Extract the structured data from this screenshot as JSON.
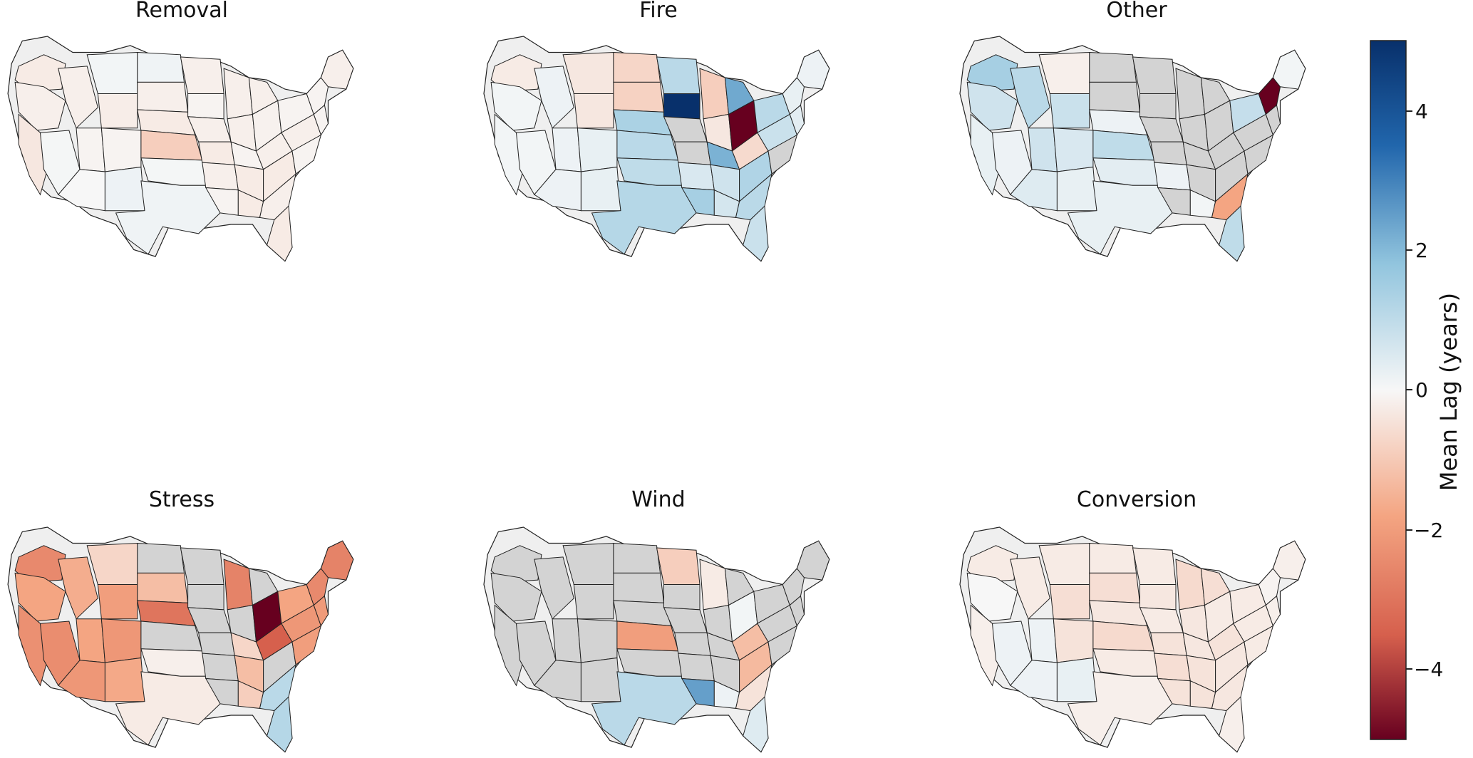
{
  "figure": {
    "panels": [
      {
        "title": "Removal",
        "key": "removal",
        "fill_mode": "diverging_light"
      },
      {
        "title": "Fire",
        "key": "fire",
        "fill_mode": "fire_mixed"
      },
      {
        "title": "Other",
        "key": "other",
        "fill_mode": "other_sparse"
      },
      {
        "title": "Stress",
        "key": "stress",
        "fill_mode": "stress_strong"
      },
      {
        "title": "Wind",
        "key": "wind",
        "fill_mode": "wind_sparse"
      },
      {
        "title": "Conversion",
        "key": "conversion",
        "fill_mode": "conversion_light"
      }
    ],
    "colorbar": {
      "label": "Mean Lag (years)",
      "ticks": [
        "4",
        "2",
        "0",
        "−2",
        "−4"
      ],
      "colors": {
        "top": "#08306b",
        "upper_mid": "#2166ac",
        "light_blue": "#92c5de",
        "white": "#f7f7f7",
        "light_red": "#f4a582",
        "lower_mid": "#d6604d",
        "bottom": "#67001f",
        "missing": "#d3d3d3",
        "border": "#222222"
      }
    }
  }
}
